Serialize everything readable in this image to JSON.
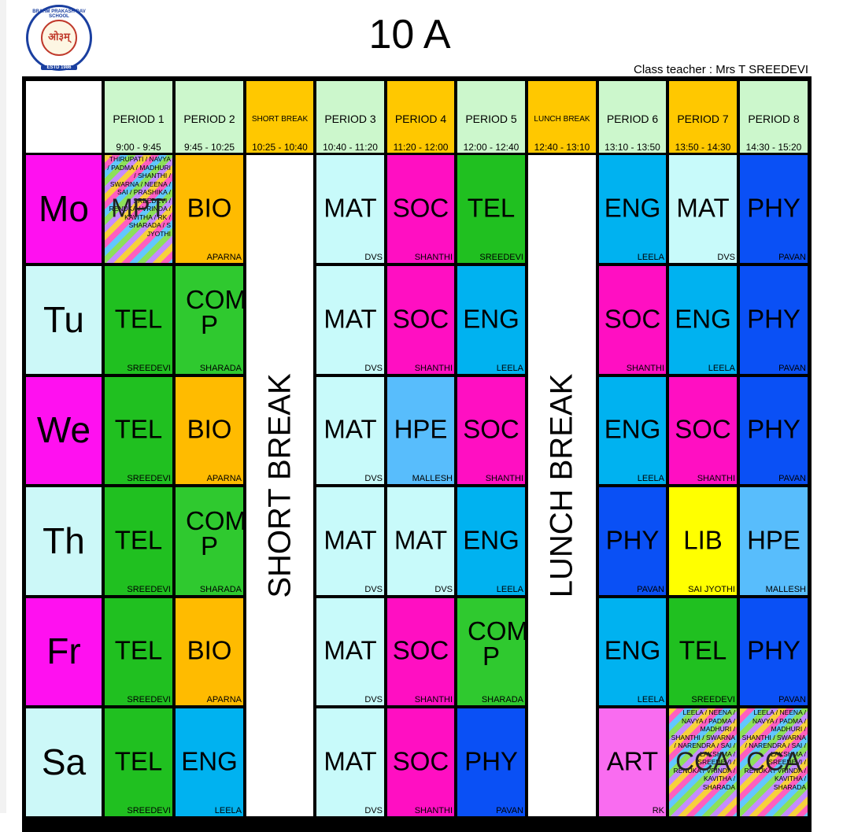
{
  "logo": {
    "ring_text": "BRAHM PRAKASH DAV SCHOOL",
    "symbol": "ओ३म्",
    "estd": "ESTD 1986"
  },
  "title": "10 A",
  "class_teacher": "Class teacher : Mrs T SREEDEVI",
  "colors": {
    "PERIOD": "#ccf7cc",
    "BREAKHDR": "#ffc800",
    "MAT": "#c8fafa",
    "SOC": "#ff0fc2",
    "TEL": "#20c020",
    "ENG": "#00b2f0",
    "PHY": "#0a50f5",
    "BIO": "#ffbb00",
    "COMP": "#2fc92f",
    "HPE": "#58bdfc",
    "LIB": "#ffff00",
    "ART": "#f96cf0",
    "DAY_MO": "#ff10f0",
    "DAY_TU": "#ccf8f8"
  },
  "headers": [
    {
      "name": "PERIOD 1",
      "time": "9:00 - 9:45",
      "type": "period"
    },
    {
      "name": "PERIOD 2",
      "time": "9:45 - 10:25",
      "type": "period2"
    },
    {
      "name": "SHORT BREAK",
      "time": "10:25 - 10:40",
      "type": "break"
    },
    {
      "name": "PERIOD 3",
      "time": "10:40 - 11:20",
      "type": "period2"
    },
    {
      "name": "PERIOD 4",
      "time": "11:20 - 12:00",
      "type": "break"
    },
    {
      "name": "PERIOD 5",
      "time": "12:00 - 12:40",
      "type": "period2"
    },
    {
      "name": "LUNCH BREAK",
      "time": "12:40 - 13:10",
      "type": "break"
    },
    {
      "name": "PERIOD 6",
      "time": "13:10 - 13:50",
      "type": "period2"
    },
    {
      "name": "PERIOD 7",
      "time": "13:50 - 14:30",
      "type": "break"
    },
    {
      "name": "PERIOD 8",
      "time": "14:30 - 15:20",
      "type": "period2"
    }
  ],
  "breaks": {
    "short": "SHORT BREAK",
    "lunch": "LUNCH BREAK"
  },
  "days": [
    {
      "day": "Mo",
      "slots": [
        {
          "subject": "MPT",
          "teacher": "THIRUPATI / NAVYA / PADMA / MADHURI / SHANTHI / SWARNA / NEENA / SAI / PRASHIKA / SREEDEVI / RENUKA / VRINDA / KAVITHA / RK / SHARADA / S JYOTHI",
          "style": "multi"
        },
        {
          "subject": "BIO",
          "teacher": "APARNA",
          "style": "BIO"
        },
        {
          "subject": "MAT",
          "teacher": "DVS",
          "style": "MAT"
        },
        {
          "subject": "SOC",
          "teacher": "SHANTHI",
          "style": "SOC"
        },
        {
          "subject": "TEL",
          "teacher": "SREEDEVI",
          "style": "TEL"
        },
        {
          "subject": "ENG",
          "teacher": "LEELA",
          "style": "ENG"
        },
        {
          "subject": "MAT",
          "teacher": "DVS",
          "style": "MAT"
        },
        {
          "subject": "PHY",
          "teacher": "PAVAN",
          "style": "PHY"
        }
      ]
    },
    {
      "day": "Tu",
      "slots": [
        {
          "subject": "TEL",
          "teacher": "SREEDEVI",
          "style": "TEL"
        },
        {
          "subject": "COM P",
          "teacher": "SHARADA",
          "style": "COMP"
        },
        {
          "subject": "MAT",
          "teacher": "DVS",
          "style": "MAT"
        },
        {
          "subject": "SOC",
          "teacher": "SHANTHI",
          "style": "SOC"
        },
        {
          "subject": "ENG",
          "teacher": "LEELA",
          "style": "ENG"
        },
        {
          "subject": "SOC",
          "teacher": "SHANTHI",
          "style": "SOC"
        },
        {
          "subject": "ENG",
          "teacher": "LEELA",
          "style": "ENG"
        },
        {
          "subject": "PHY",
          "teacher": "PAVAN",
          "style": "PHY"
        }
      ]
    },
    {
      "day": "We",
      "slots": [
        {
          "subject": "TEL",
          "teacher": "SREEDEVI",
          "style": "TEL"
        },
        {
          "subject": "BIO",
          "teacher": "APARNA",
          "style": "BIO"
        },
        {
          "subject": "MAT",
          "teacher": "DVS",
          "style": "MAT"
        },
        {
          "subject": "HPE",
          "teacher": "MALLESH",
          "style": "HPE"
        },
        {
          "subject": "SOC",
          "teacher": "SHANTHI",
          "style": "SOC"
        },
        {
          "subject": "ENG",
          "teacher": "LEELA",
          "style": "ENG"
        },
        {
          "subject": "SOC",
          "teacher": "SHANTHI",
          "style": "SOC"
        },
        {
          "subject": "PHY",
          "teacher": "PAVAN",
          "style": "PHY"
        }
      ]
    },
    {
      "day": "Th",
      "slots": [
        {
          "subject": "TEL",
          "teacher": "SREEDEVI",
          "style": "TEL"
        },
        {
          "subject": "COM P",
          "teacher": "SHARADA",
          "style": "COMP"
        },
        {
          "subject": "MAT",
          "teacher": "DVS",
          "style": "MAT"
        },
        {
          "subject": "MAT",
          "teacher": "DVS",
          "style": "MAT"
        },
        {
          "subject": "ENG",
          "teacher": "LEELA",
          "style": "ENG"
        },
        {
          "subject": "PHY",
          "teacher": "PAVAN",
          "style": "PHY"
        },
        {
          "subject": "LIB",
          "teacher": "SAI JYOTHI",
          "style": "LIB"
        },
        {
          "subject": "HPE",
          "teacher": "MALLESH",
          "style": "HPE"
        }
      ]
    },
    {
      "day": "Fr",
      "slots": [
        {
          "subject": "TEL",
          "teacher": "SREEDEVI",
          "style": "TEL"
        },
        {
          "subject": "BIO",
          "teacher": "APARNA",
          "style": "BIO"
        },
        {
          "subject": "MAT",
          "teacher": "DVS",
          "style": "MAT"
        },
        {
          "subject": "SOC",
          "teacher": "SHANTHI",
          "style": "SOC"
        },
        {
          "subject": "COM P",
          "teacher": "SHARADA",
          "style": "COMP"
        },
        {
          "subject": "ENG",
          "teacher": "LEELA",
          "style": "ENG"
        },
        {
          "subject": "TEL",
          "teacher": "SREEDEVI",
          "style": "TEL"
        },
        {
          "subject": "PHY",
          "teacher": "PAVAN",
          "style": "PHY"
        }
      ]
    },
    {
      "day": "Sa",
      "slots": [
        {
          "subject": "TEL",
          "teacher": "SREEDEVI",
          "style": "TEL"
        },
        {
          "subject": "ENG",
          "teacher": "LEELA",
          "style": "ENG"
        },
        {
          "subject": "MAT",
          "teacher": "DVS",
          "style": "MAT"
        },
        {
          "subject": "SOC",
          "teacher": "SHANTHI",
          "style": "SOC"
        },
        {
          "subject": "PHY",
          "teacher": "PAVAN",
          "style": "PHY"
        },
        {
          "subject": "ART",
          "teacher": "RK",
          "style": "ART"
        },
        {
          "subject": "CCA",
          "teacher": "LEELA / NEENA / NAVYA / PADMA / MADHURI / SHANTHI / SWARNA / NARENDRA / SAI / LAKSHMA / SREEDEVI / RENUKA / VRINDA / KAVITHA / SHARADA",
          "style": "multi"
        },
        {
          "subject": "CCA",
          "teacher": "LEELA / NEENA / NAVYA / PADMA / MADHURI / SHANTHI / SWARNA / NARENDRA / SAI / LAKSHMA / SREEDEVI / RENUKA / VRINDA / KAVITHA / SHARADA",
          "style": "multi"
        }
      ]
    }
  ]
}
